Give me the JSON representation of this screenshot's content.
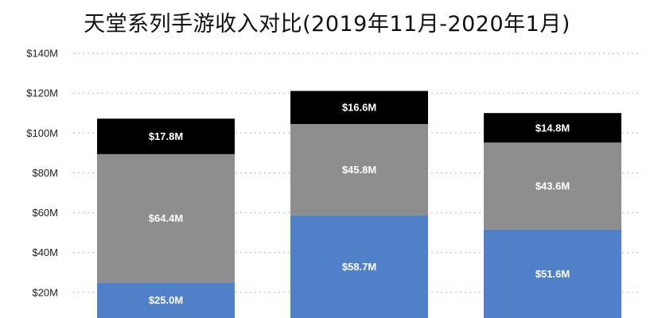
{
  "chart_data": {
    "type": "bar",
    "stacked": true,
    "title": "天堂系列手游收入对比(2019年11月-2020年1月)",
    "xlabel": "",
    "ylabel": "",
    "ylim": [
      0,
      140
    ],
    "y_ticks": [
      "$20M",
      "$40M",
      "$60M",
      "$80M",
      "$100M",
      "$120M",
      "$140M"
    ],
    "y_tick_values": [
      20,
      40,
      60,
      80,
      100,
      120,
      140
    ],
    "grid": true,
    "categories": [
      "",
      "",
      ""
    ],
    "series": [
      {
        "color": "#5080c8",
        "values": [
          25.0,
          58.7,
          51.6
        ],
        "labels": [
          "$25.0M",
          "$58.7M",
          "$51.6M"
        ],
        "label_color": "#ffffff"
      },
      {
        "color": "#8e8e8e",
        "values": [
          64.4,
          45.8,
          43.6
        ],
        "labels": [
          "$64.4M",
          "$45.8M",
          "$43.6M"
        ],
        "label_color": "#ffffff"
      },
      {
        "color": "#000000",
        "values": [
          17.8,
          16.6,
          14.8
        ],
        "labels": [
          "$17.8M",
          "$16.6M",
          "$14.8M"
        ],
        "label_color": "#ffffff"
      }
    ]
  }
}
